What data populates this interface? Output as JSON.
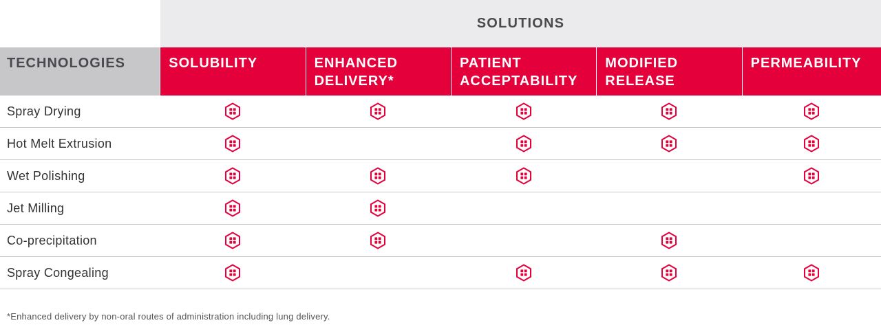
{
  "header": {
    "solutions_label": "SOLUTIONS",
    "technologies_label": "TECHNOLOGIES",
    "columns": [
      {
        "line1": "SOLUBILITY",
        "line2": ""
      },
      {
        "line1": "ENHANCED",
        "line2": "DELIVERY*"
      },
      {
        "line1": "PATIENT",
        "line2": "ACCEPTABILITY"
      },
      {
        "line1": "MODIFIED",
        "line2": "RELEASE"
      },
      {
        "line1": "PERMEABILITY",
        "line2": ""
      }
    ]
  },
  "rows": [
    {
      "name": "Spray Drying",
      "marks": [
        true,
        true,
        true,
        true,
        true
      ]
    },
    {
      "name": "Hot Melt Extrusion",
      "marks": [
        true,
        false,
        true,
        true,
        true
      ]
    },
    {
      "name": "Wet Polishing",
      "marks": [
        true,
        true,
        true,
        false,
        true
      ]
    },
    {
      "name": "Jet Milling",
      "marks": [
        true,
        true,
        false,
        false,
        false
      ]
    },
    {
      "name": "Co-precipitation",
      "marks": [
        true,
        true,
        false,
        true,
        false
      ]
    },
    {
      "name": "Spray Congealing",
      "marks": [
        true,
        false,
        true,
        true,
        true
      ]
    }
  ],
  "mark_icon": "hexagon-grid-icon",
  "colors": {
    "accent": "#e4003b",
    "header_gray": "#ebebed",
    "tech_gray": "#c7c7ca"
  },
  "footnote": "*Enhanced delivery by non-oral routes of administration including lung delivery."
}
